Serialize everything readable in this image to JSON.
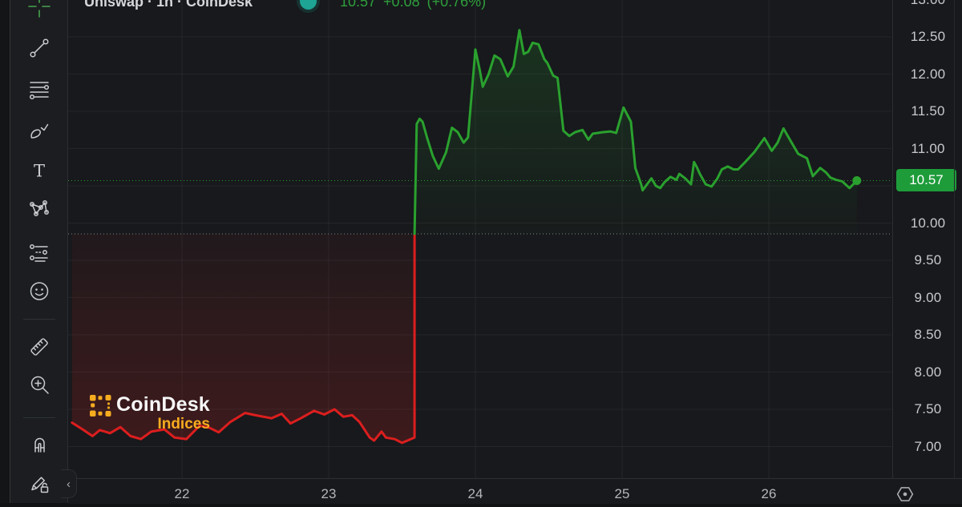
{
  "header": {
    "title": "Uniswap · 1h · CoinDesk",
    "price": "10.57",
    "change": "+0.08",
    "change_pct": "(+0.76%)"
  },
  "watermark": {
    "brand": "CoinDesk",
    "sub": "Indices"
  },
  "toolbar": {
    "items": [
      {
        "name": "crosshair"
      },
      {
        "name": "trend-line"
      },
      {
        "name": "fib-retracement"
      },
      {
        "name": "brush"
      },
      {
        "name": "text"
      },
      {
        "name": "xabcd-pattern"
      },
      {
        "name": "prediction-measure"
      },
      {
        "name": "emoji"
      },
      {
        "name": "ruler"
      },
      {
        "name": "zoom-in"
      },
      {
        "name": "magnet"
      },
      {
        "name": "drawing-lock"
      }
    ]
  },
  "collapse_tab": {
    "glyph": "‹"
  },
  "price_axis": {
    "ticks": [
      {
        "label": "13.00",
        "value": 13.0
      },
      {
        "label": "12.50",
        "value": 12.5
      },
      {
        "label": "12.00",
        "value": 12.0
      },
      {
        "label": "11.50",
        "value": 11.5
      },
      {
        "label": "11.00",
        "value": 11.0
      },
      {
        "label": "10.00",
        "value": 10.0
      },
      {
        "label": "9.50",
        "value": 9.5
      },
      {
        "label": "9.00",
        "value": 9.0
      },
      {
        "label": "8.50",
        "value": 8.5
      },
      {
        "label": "8.00",
        "value": 8.0
      },
      {
        "label": "7.50",
        "value": 7.5
      },
      {
        "label": "7.00",
        "value": 7.0
      }
    ],
    "badge": {
      "label": "10.57",
      "value": 10.57,
      "color": "#1e9c3a"
    }
  },
  "time_axis": {
    "ticks": [
      {
        "label": "22",
        "value": 22
      },
      {
        "label": "23",
        "value": 23
      },
      {
        "label": "24",
        "value": 24
      },
      {
        "label": "25",
        "value": 25
      },
      {
        "label": "26",
        "value": 26
      }
    ]
  },
  "colors": {
    "up": "#2aa12e",
    "down": "#dc1e1e",
    "badge": "#1e9c3a",
    "quote_text": "#2f9e3c",
    "status_dot": "#1ea593",
    "grid": "rgba(255,255,255,0.055)",
    "baseline_dots": "#9aa0a6",
    "watermark_yellow": "#f6ac1f",
    "bg": "#17191c"
  },
  "chart_data": {
    "type": "line",
    "style": "baseline-area",
    "title": "Uniswap · 1h · CoinDesk",
    "last_price": 10.57,
    "change": "+0.08",
    "change_pct": "+0.76%",
    "baseline": 9.855,
    "x_unit": "day-of-month",
    "xlim": [
      21.22,
      26.84
    ],
    "ylim": [
      6.58,
      13.0
    ],
    "x_ticks": [
      22,
      23,
      24,
      25,
      26
    ],
    "y_ticks": [
      7.0,
      7.5,
      8.0,
      8.5,
      9.0,
      9.5,
      10.0,
      10.5,
      11.0,
      11.5,
      12.0,
      12.5,
      13.0
    ],
    "grid": true,
    "legend_position": "none",
    "series": [
      {
        "name": "price-below-baseline",
        "color": "#dc1e1e",
        "points": [
          [
            21.25,
            7.32
          ],
          [
            21.33,
            7.22
          ],
          [
            21.39,
            7.14
          ],
          [
            21.44,
            7.22
          ],
          [
            21.51,
            7.18
          ],
          [
            21.58,
            7.26
          ],
          [
            21.65,
            7.14
          ],
          [
            21.72,
            7.1
          ],
          [
            21.79,
            7.2
          ],
          [
            21.88,
            7.23
          ],
          [
            21.95,
            7.12
          ],
          [
            22.03,
            7.1
          ],
          [
            22.12,
            7.28
          ],
          [
            22.19,
            7.25
          ],
          [
            22.25,
            7.19
          ],
          [
            22.33,
            7.33
          ],
          [
            22.43,
            7.45
          ],
          [
            22.5,
            7.42
          ],
          [
            22.61,
            7.38
          ],
          [
            22.68,
            7.44
          ],
          [
            22.74,
            7.31
          ],
          [
            22.81,
            7.38
          ],
          [
            22.9,
            7.48
          ],
          [
            22.97,
            7.43
          ],
          [
            23.04,
            7.5
          ],
          [
            23.1,
            7.4
          ],
          [
            23.16,
            7.42
          ],
          [
            23.21,
            7.33
          ],
          [
            23.28,
            7.12
          ],
          [
            23.31,
            7.08
          ],
          [
            23.36,
            7.2
          ],
          [
            23.39,
            7.12
          ],
          [
            23.45,
            7.1
          ],
          [
            23.5,
            7.05
          ],
          [
            23.56,
            7.1
          ],
          [
            23.585,
            7.12
          ],
          [
            23.585,
            9.855
          ]
        ]
      },
      {
        "name": "price-above-baseline",
        "color": "#2aa12e",
        "points": [
          [
            23.585,
            9.855
          ],
          [
            23.6,
            11.33
          ],
          [
            23.62,
            11.4
          ],
          [
            23.64,
            11.36
          ],
          [
            23.67,
            11.15
          ],
          [
            23.71,
            10.9
          ],
          [
            23.75,
            10.73
          ],
          [
            23.8,
            10.95
          ],
          [
            23.84,
            11.28
          ],
          [
            23.88,
            11.22
          ],
          [
            23.92,
            11.08
          ],
          [
            23.95,
            11.15
          ],
          [
            23.97,
            11.62
          ],
          [
            24.0,
            12.33
          ],
          [
            24.03,
            12.05
          ],
          [
            24.05,
            11.83
          ],
          [
            24.09,
            12.0
          ],
          [
            24.13,
            12.25
          ],
          [
            24.17,
            12.2
          ],
          [
            24.22,
            11.97
          ],
          [
            24.26,
            12.1
          ],
          [
            24.3,
            12.59
          ],
          [
            24.33,
            12.27
          ],
          [
            24.36,
            12.3
          ],
          [
            24.39,
            12.42
          ],
          [
            24.43,
            12.4
          ],
          [
            24.47,
            12.2
          ],
          [
            24.49,
            12.15
          ],
          [
            24.53,
            11.98
          ],
          [
            24.56,
            11.95
          ],
          [
            24.6,
            11.24
          ],
          [
            24.64,
            11.17
          ],
          [
            24.68,
            11.22
          ],
          [
            24.73,
            11.25
          ],
          [
            24.77,
            11.12
          ],
          [
            24.8,
            11.2
          ],
          [
            24.87,
            11.22
          ],
          [
            24.92,
            11.23
          ],
          [
            24.96,
            11.21
          ],
          [
            25.01,
            11.55
          ],
          [
            25.06,
            11.36
          ],
          [
            25.09,
            10.74
          ],
          [
            25.13,
            10.52
          ],
          [
            25.14,
            10.44
          ],
          [
            25.17,
            10.52
          ],
          [
            25.2,
            10.6
          ],
          [
            25.23,
            10.5
          ],
          [
            25.26,
            10.47
          ],
          [
            25.29,
            10.55
          ],
          [
            25.33,
            10.62
          ],
          [
            25.37,
            10.58
          ],
          [
            25.39,
            10.66
          ],
          [
            25.43,
            10.6
          ],
          [
            25.47,
            10.52
          ],
          [
            25.49,
            10.82
          ],
          [
            25.51,
            10.75
          ],
          [
            25.53,
            10.66
          ],
          [
            25.57,
            10.52
          ],
          [
            25.61,
            10.49
          ],
          [
            25.65,
            10.6
          ],
          [
            25.68,
            10.72
          ],
          [
            25.72,
            10.76
          ],
          [
            25.76,
            10.72
          ],
          [
            25.79,
            10.72
          ],
          [
            25.83,
            10.8
          ],
          [
            25.9,
            10.95
          ],
          [
            25.97,
            11.14
          ],
          [
            26.02,
            10.97
          ],
          [
            26.06,
            11.08
          ],
          [
            26.1,
            11.27
          ],
          [
            26.15,
            11.1
          ],
          [
            26.2,
            10.93
          ],
          [
            26.26,
            10.87
          ],
          [
            26.3,
            10.63
          ],
          [
            26.35,
            10.74
          ],
          [
            26.39,
            10.68
          ],
          [
            26.42,
            10.61
          ],
          [
            26.46,
            10.58
          ],
          [
            26.5,
            10.56
          ],
          [
            26.55,
            10.47
          ],
          [
            26.6,
            10.57
          ]
        ]
      }
    ]
  }
}
